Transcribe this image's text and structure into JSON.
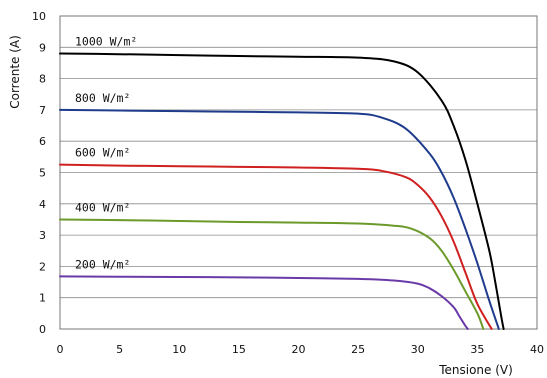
{
  "chart_data": {
    "type": "line",
    "xlabel": "Tensione (V)",
    "ylabel": "Corrente (A)",
    "xlim": [
      0,
      40
    ],
    "ylim": [
      0,
      10
    ],
    "x_ticks": [
      0,
      5,
      10,
      15,
      20,
      25,
      30,
      35,
      40
    ],
    "y_ticks": [
      0,
      1,
      2,
      3,
      4,
      5,
      6,
      7,
      8,
      9,
      10
    ],
    "grid": "horizontal",
    "legend": "inline curve labels",
    "series": [
      {
        "name": "1000 W/m²",
        "color": "#000000",
        "points": [
          [
            0,
            8.8
          ],
          [
            5,
            8.78
          ],
          [
            10,
            8.75
          ],
          [
            15,
            8.72
          ],
          [
            20,
            8.7
          ],
          [
            25,
            8.67
          ],
          [
            28,
            8.55
          ],
          [
            30,
            8.2
          ],
          [
            32,
            7.3
          ],
          [
            33,
            6.5
          ],
          [
            34,
            5.4
          ],
          [
            35,
            4.0
          ],
          [
            36,
            2.5
          ],
          [
            36.5,
            1.5
          ],
          [
            37,
            0.4
          ],
          [
            37.2,
            0
          ]
        ]
      },
      {
        "name": "800 W/m²",
        "color": "#1f3c8c",
        "points": [
          [
            0,
            7.0
          ],
          [
            5,
            6.98
          ],
          [
            10,
            6.96
          ],
          [
            15,
            6.94
          ],
          [
            20,
            6.92
          ],
          [
            25,
            6.88
          ],
          [
            27,
            6.75
          ],
          [
            29,
            6.4
          ],
          [
            31,
            5.6
          ],
          [
            32,
            5.0
          ],
          [
            33,
            4.2
          ],
          [
            34,
            3.2
          ],
          [
            35,
            2.1
          ],
          [
            36,
            0.9
          ],
          [
            36.8,
            0
          ]
        ]
      },
      {
        "name": "600 W/m²",
        "color": "#d02020",
        "points": [
          [
            0,
            5.25
          ],
          [
            5,
            5.22
          ],
          [
            10,
            5.2
          ],
          [
            15,
            5.18
          ],
          [
            20,
            5.16
          ],
          [
            25,
            5.12
          ],
          [
            27,
            5.05
          ],
          [
            29,
            4.85
          ],
          [
            30,
            4.6
          ],
          [
            31,
            4.2
          ],
          [
            32,
            3.6
          ],
          [
            33,
            2.8
          ],
          [
            34,
            1.8
          ],
          [
            35,
            0.8
          ],
          [
            36.2,
            0
          ]
        ]
      },
      {
        "name": "400 W/m²",
        "color": "#6b9a2a",
        "points": [
          [
            0,
            3.5
          ],
          [
            5,
            3.48
          ],
          [
            10,
            3.45
          ],
          [
            15,
            3.42
          ],
          [
            20,
            3.4
          ],
          [
            25,
            3.37
          ],
          [
            28,
            3.3
          ],
          [
            29.5,
            3.2
          ],
          [
            31,
            2.9
          ],
          [
            32,
            2.5
          ],
          [
            33,
            1.9
          ],
          [
            34,
            1.2
          ],
          [
            35,
            0.5
          ],
          [
            35.5,
            0
          ]
        ]
      },
      {
        "name": "200 W/m²",
        "color": "#6a3aa8",
        "points": [
          [
            0,
            1.68
          ],
          [
            5,
            1.67
          ],
          [
            10,
            1.66
          ],
          [
            15,
            1.65
          ],
          [
            20,
            1.63
          ],
          [
            25,
            1.6
          ],
          [
            28,
            1.55
          ],
          [
            30,
            1.45
          ],
          [
            31,
            1.3
          ],
          [
            32,
            1.05
          ],
          [
            33,
            0.7
          ],
          [
            33.5,
            0.4
          ],
          [
            34,
            0.1
          ],
          [
            34.2,
            0
          ]
        ]
      }
    ]
  }
}
